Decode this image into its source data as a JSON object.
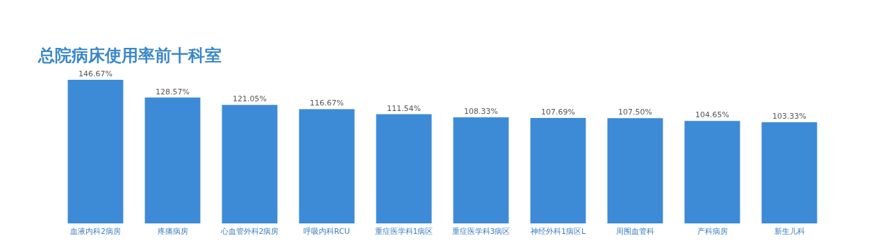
{
  "chart_data": {
    "type": "bar",
    "title": "总院病床使用率前十科室",
    "categories": [
      "血液内科2病房",
      "疼痛病房",
      "心血管外科2病房",
      "呼吸内科RCU",
      "重症医学科1病区",
      "重症医学科3病区",
      "神经外科1病区L",
      "周围血管科",
      "产科病房",
      "新生儿科"
    ],
    "values": [
      146.67,
      128.57,
      121.05,
      116.67,
      111.54,
      108.33,
      107.69,
      107.5,
      104.65,
      103.33
    ],
    "value_labels": [
      "146.67%",
      "128.57%",
      "121.05%",
      "116.67%",
      "111.54%",
      "108.33%",
      "107.69%",
      "107.50%",
      "104.65%",
      "103.33%"
    ],
    "color": "#3d8bd6"
  }
}
